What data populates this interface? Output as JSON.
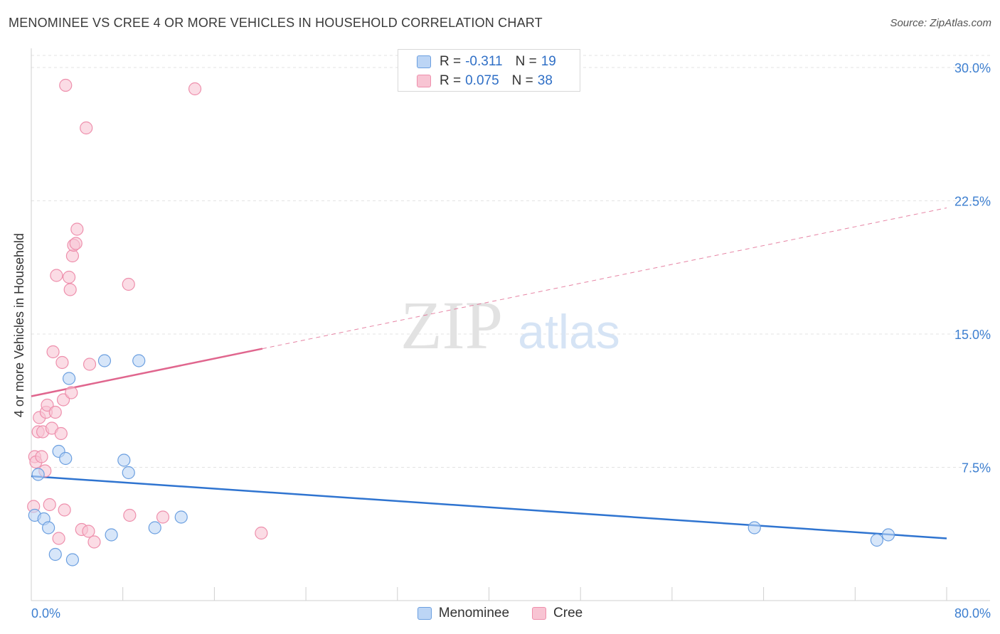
{
  "title": "MENOMINEE VS CREE 4 OR MORE VEHICLES IN HOUSEHOLD CORRELATION CHART",
  "source": "Source: ZipAtlas.com",
  "watermark": {
    "zip": "ZIP",
    "atlas": "atlas"
  },
  "legend_stats": [
    {
      "r_label": "R =",
      "r_value": "-0.311",
      "n_label": "N =",
      "n_value": "19"
    },
    {
      "r_label": "R =",
      "r_value": "0.075",
      "n_label": "N =",
      "n_value": "38"
    }
  ],
  "colors": {
    "menominee_fill": "#bcd5f5",
    "menominee_stroke": "#6b9fe0",
    "menominee_line": "#2f74d0",
    "cree_fill": "#f8c4d3",
    "cree_stroke": "#ee8fac",
    "cree_line": "#e0668e",
    "axis_text": "#3d7fd0",
    "grid": "#e3e3e3"
  },
  "chart_data": {
    "type": "scatter",
    "title": "MENOMINEE VS CREE 4 OR MORE VEHICLES IN HOUSEHOLD CORRELATION CHART",
    "xlabel": "",
    "ylabel": "4 or more Vehicles in Household",
    "xlim": [
      0,
      80
    ],
    "ylim": [
      0,
      31
    ],
    "x_tick_labels": [
      "0.0%",
      "80.0%"
    ],
    "y_ticks": [
      7.5,
      15.0,
      22.5,
      30.0
    ],
    "y_tick_labels": [
      "7.5%",
      "15.0%",
      "22.5%",
      "30.0%"
    ],
    "grid": true,
    "legend_position": "bottom",
    "series": [
      {
        "name": "Menominee",
        "points": [
          [
            0.3,
            4.8
          ],
          [
            0.6,
            7.1
          ],
          [
            1.1,
            4.6
          ],
          [
            1.5,
            4.1
          ],
          [
            2.1,
            2.6
          ],
          [
            2.4,
            8.4
          ],
          [
            3.0,
            8.0
          ],
          [
            3.3,
            12.5
          ],
          [
            3.6,
            2.3
          ],
          [
            6.4,
            13.5
          ],
          [
            7.0,
            3.7
          ],
          [
            8.1,
            7.9
          ],
          [
            8.5,
            7.2
          ],
          [
            9.4,
            13.5
          ],
          [
            10.8,
            4.1
          ],
          [
            13.1,
            4.7
          ],
          [
            63.2,
            4.1
          ],
          [
            73.9,
            3.4
          ],
          [
            74.9,
            3.7
          ]
        ],
        "trend": {
          "x": [
            0,
            80
          ],
          "y": [
            7.0,
            3.5
          ],
          "dashed_extension": false
        }
      },
      {
        "name": "Cree",
        "points": [
          [
            0.2,
            5.3
          ],
          [
            0.3,
            8.1
          ],
          [
            0.4,
            7.8
          ],
          [
            0.6,
            9.5
          ],
          [
            0.7,
            10.3
          ],
          [
            0.9,
            8.1
          ],
          [
            1.0,
            9.5
          ],
          [
            1.2,
            7.3
          ],
          [
            1.3,
            10.6
          ],
          [
            1.4,
            11.0
          ],
          [
            1.6,
            5.4
          ],
          [
            1.8,
            9.7
          ],
          [
            1.9,
            14.0
          ],
          [
            2.1,
            10.6
          ],
          [
            2.2,
            18.3
          ],
          [
            2.4,
            3.5
          ],
          [
            2.6,
            9.4
          ],
          [
            2.7,
            13.4
          ],
          [
            2.8,
            11.3
          ],
          [
            2.9,
            5.1
          ],
          [
            3.0,
            29.0
          ],
          [
            3.3,
            18.2
          ],
          [
            3.4,
            17.5
          ],
          [
            3.5,
            11.7
          ],
          [
            3.6,
            19.4
          ],
          [
            3.7,
            20.0
          ],
          [
            3.9,
            20.1
          ],
          [
            4.0,
            20.9
          ],
          [
            4.4,
            4.0
          ],
          [
            4.8,
            26.6
          ],
          [
            5.0,
            3.9
          ],
          [
            5.1,
            13.3
          ],
          [
            5.5,
            3.3
          ],
          [
            8.5,
            17.8
          ],
          [
            8.6,
            4.8
          ],
          [
            11.5,
            4.7
          ],
          [
            14.3,
            28.8
          ],
          [
            20.1,
            3.8
          ]
        ],
        "trend": {
          "x": [
            0,
            80
          ],
          "y": [
            11.5,
            22.1
          ],
          "solid_until_x": 20.2
        }
      }
    ]
  }
}
